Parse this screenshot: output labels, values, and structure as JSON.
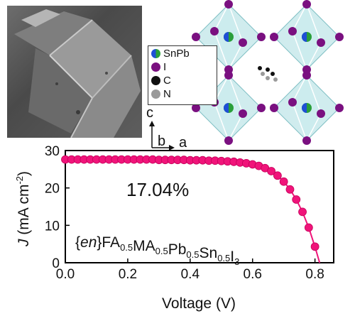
{
  "legend": {
    "items": [
      {
        "label": "SnPb",
        "color": "#2a9f3a",
        "color2": "#1f4fd6"
      },
      {
        "label": "I",
        "color": "#7a1080"
      },
      {
        "label": "C",
        "color": "#111111"
      },
      {
        "label": "N",
        "color": "#9a9a9a"
      }
    ]
  },
  "axes_indicator": {
    "c": "c",
    "b": "b",
    "a": "a"
  },
  "colors": {
    "series": "#f0147a",
    "axis": "#000000"
  },
  "chart_data": {
    "type": "line",
    "xlabel": "Voltage (V)",
    "ylabel_prefix": "J",
    "ylabel_unit": "(mA cm",
    "ylabel_sup": "-2",
    "ylabel_close": ")",
    "xlim": [
      0.0,
      0.86
    ],
    "ylim": [
      0,
      30
    ],
    "xticks": [
      0.0,
      0.2,
      0.4,
      0.6,
      0.8
    ],
    "xtick_labels": [
      "0.0",
      "0.2",
      "0.4",
      "0.6",
      "0.8"
    ],
    "yticks": [
      0,
      10,
      20,
      30
    ],
    "ytick_labels": [
      "0",
      "10",
      "20",
      "30"
    ],
    "annotation_pce": "17.04%",
    "formula": [
      {
        "t": "{",
        "s": ""
      },
      {
        "t": "en",
        "s": "i"
      },
      {
        "t": "}FA",
        "s": ""
      },
      {
        "t": "0.5",
        "s": "sub"
      },
      {
        "t": "MA",
        "s": ""
      },
      {
        "t": "0.5",
        "s": "sub"
      },
      {
        "t": "Pb",
        "s": ""
      },
      {
        "t": "0.5",
        "s": "sub"
      },
      {
        "t": "Sn",
        "s": ""
      },
      {
        "t": "0.5",
        "s": "sub"
      },
      {
        "t": "I",
        "s": ""
      },
      {
        "t": "3",
        "s": "sub"
      }
    ],
    "series": [
      {
        "x": [
          0.0,
          0.02,
          0.04,
          0.06,
          0.08,
          0.1,
          0.12,
          0.14,
          0.16,
          0.18,
          0.2,
          0.22,
          0.24,
          0.26,
          0.28,
          0.3,
          0.32,
          0.34,
          0.36,
          0.38,
          0.4,
          0.42,
          0.44,
          0.46,
          0.48,
          0.5,
          0.52,
          0.54,
          0.56,
          0.58,
          0.6,
          0.62,
          0.64,
          0.66,
          0.68,
          0.7,
          0.72,
          0.74,
          0.76,
          0.78,
          0.8
        ],
        "y": [
          27.6,
          27.6,
          27.6,
          27.6,
          27.6,
          27.6,
          27.6,
          27.6,
          27.6,
          27.6,
          27.6,
          27.6,
          27.6,
          27.6,
          27.6,
          27.5,
          27.5,
          27.5,
          27.5,
          27.5,
          27.4,
          27.4,
          27.4,
          27.3,
          27.3,
          27.2,
          27.1,
          27.0,
          26.8,
          26.6,
          26.3,
          25.9,
          25.3,
          24.5,
          23.3,
          21.7,
          19.6,
          16.9,
          13.6,
          9.4,
          4.3
        ]
      }
    ]
  }
}
